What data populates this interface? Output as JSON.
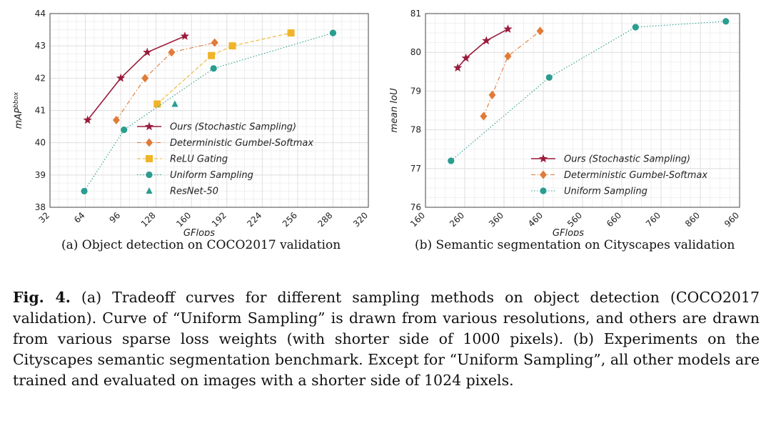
{
  "chart_data": [
    {
      "type": "line",
      "xlabel": "GFlops",
      "ylabel": "mAP",
      "ylabel_sup": "bbox",
      "xlim": [
        32,
        320
      ],
      "ylim": [
        38,
        44
      ],
      "xticks": [
        32,
        64,
        96,
        128,
        160,
        192,
        224,
        256,
        288,
        320
      ],
      "yticks": [
        38,
        39,
        40,
        41,
        42,
        43,
        44
      ],
      "grid": true,
      "legend_position": "lower-right",
      "series": [
        {
          "name": "Ours (Stochastic Sampling)",
          "color": "#9b1b3c",
          "marker": "star",
          "line": "solid",
          "x": [
            66,
            96,
            120,
            154
          ],
          "y": [
            40.7,
            42.0,
            42.8,
            43.3
          ]
        },
        {
          "name": "Deterministic Gumbel-Softmax",
          "color": "#e07b39",
          "marker": "diamond",
          "line": "dashdot",
          "x": [
            92,
            118,
            142,
            181
          ],
          "y": [
            40.7,
            42.0,
            42.8,
            43.1
          ]
        },
        {
          "name": "ReLU Gating",
          "color": "#f0b429",
          "marker": "square",
          "line": "dashed",
          "x": [
            129,
            178,
            197,
            250
          ],
          "y": [
            41.2,
            42.7,
            43.0,
            43.4
          ]
        },
        {
          "name": "Uniform Sampling",
          "color": "#2a9d8f",
          "marker": "circle",
          "line": "dotted",
          "x": [
            63,
            99,
            180,
            288
          ],
          "y": [
            38.5,
            40.4,
            42.3,
            43.4
          ]
        },
        {
          "name": "ResNet-50",
          "color": "#2a9d8f",
          "marker": "triangle",
          "line": "none",
          "x": [
            145
          ],
          "y": [
            41.2
          ]
        }
      ]
    },
    {
      "type": "line",
      "xlabel": "GFlops",
      "ylabel": "mean IoU",
      "xlim": [
        160,
        960
      ],
      "ylim": [
        76,
        81
      ],
      "xticks": [
        160,
        260,
        360,
        460,
        560,
        660,
        760,
        860,
        960
      ],
      "yticks": [
        76,
        77,
        78,
        79,
        80,
        81
      ],
      "grid": true,
      "legend_position": "lower-right",
      "series": [
        {
          "name": "Ours (Stochastic Sampling)",
          "color": "#9b1b3c",
          "marker": "star",
          "line": "solid",
          "x": [
            242,
            263,
            315,
            370
          ],
          "y": [
            79.6,
            79.85,
            80.3,
            80.6
          ]
        },
        {
          "name": "Deterministic Gumbel-Softmax",
          "color": "#e07b39",
          "marker": "diamond",
          "line": "dashdot",
          "x": [
            308,
            330,
            370,
            452
          ],
          "y": [
            78.35,
            78.9,
            79.9,
            80.55
          ]
        },
        {
          "name": "Uniform Sampling",
          "color": "#2a9d8f",
          "marker": "circle",
          "line": "dotted",
          "x": [
            225,
            475,
            695,
            925
          ],
          "y": [
            77.2,
            79.35,
            80.65,
            80.8
          ]
        }
      ]
    }
  ],
  "captions": {
    "a": "(a) Object detection on COCO2017 validation",
    "b": "(b) Semantic segmentation on Cityscapes validation",
    "figure_label": "Fig. 4.",
    "figure_text": "(a) Tradeoff curves for different sampling methods on object detection (COCO2017 validation). Curve of “Uniform Sampling” is drawn from various resolutions, and others are drawn from various sparse loss weights (with shorter side of 1000 pixels). (b) Experiments on the Cityscapes semantic segmentation benchmark. Except for “Uniform Sampling”, all other models are trained and evaluated on images with a shorter side of 1024 pixels."
  }
}
